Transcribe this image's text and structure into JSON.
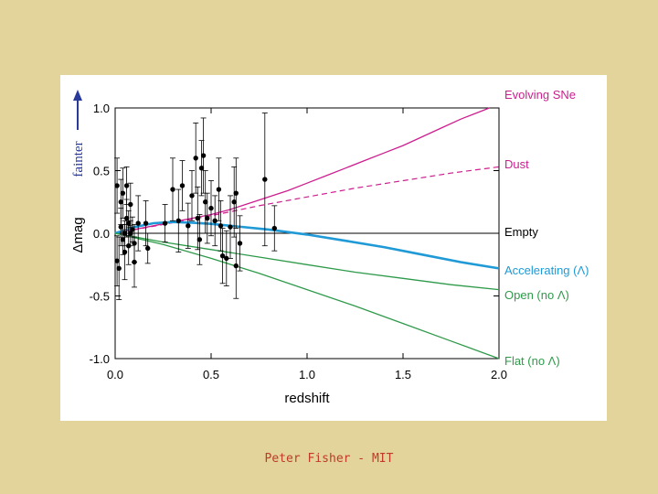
{
  "footer": {
    "text": "Peter Fisher - MIT"
  },
  "chart_data": {
    "type": "scatter",
    "xlabel": "redshift",
    "ylabel": "Δmag",
    "arrow_label": "fainter",
    "xlim": [
      0.0,
      2.0
    ],
    "ylim": [
      -1.0,
      1.0
    ],
    "xticks": [
      "0.0",
      "0.5",
      "1.0",
      "1.5",
      "2.0"
    ],
    "yticks": [
      "1.0",
      "0.5",
      "0.0",
      "-0.5",
      "-1.0"
    ],
    "grid": false,
    "series": [
      {
        "name": "Evolving SNe",
        "color": "#cc1f8f",
        "style": "solid",
        "width": 1.3,
        "x": [
          0,
          0.1,
          0.2,
          0.3,
          0.4,
          0.5,
          0.6,
          0.7,
          0.8,
          0.9,
          1.0,
          1.1,
          1.2,
          1.3,
          1.4,
          1.5,
          1.6,
          1.7,
          1.8,
          1.9,
          1.95
        ],
        "y": [
          0,
          0.03,
          0.06,
          0.09,
          0.12,
          0.15,
          0.19,
          0.24,
          0.29,
          0.34,
          0.4,
          0.46,
          0.52,
          0.58,
          0.64,
          0.7,
          0.77,
          0.84,
          0.91,
          0.97,
          1.0
        ]
      },
      {
        "name": "Dust",
        "color": "#cc1f8f",
        "style": "dashed",
        "width": 1.2,
        "x": [
          0,
          0.25,
          0.5,
          0.75,
          1.0,
          1.25,
          1.5,
          1.75,
          2.0
        ],
        "y": [
          0,
          0.07,
          0.14,
          0.22,
          0.29,
          0.36,
          0.42,
          0.48,
          0.53
        ]
      },
      {
        "name": "Empty",
        "color": "#000000",
        "style": "solid",
        "width": 0.9,
        "x": [
          0,
          2.0
        ],
        "y": [
          0,
          0
        ]
      },
      {
        "name": "Accelerating (Λ)",
        "color": "#1f9ad6",
        "style": "solid",
        "width": 2.6,
        "x": [
          0,
          0.1,
          0.2,
          0.3,
          0.4,
          0.5,
          0.6,
          0.8,
          1.0,
          1.2,
          1.4,
          1.6,
          1.8,
          2.0
        ],
        "y": [
          0,
          0.05,
          0.08,
          0.09,
          0.085,
          0.075,
          0.06,
          0.03,
          -0.01,
          -0.06,
          -0.11,
          -0.17,
          -0.23,
          -0.28
        ]
      },
      {
        "name": "Open (no Λ)",
        "color": "#2e9a4a",
        "style": "solid",
        "width": 1.3,
        "x": [
          0,
          0.25,
          0.5,
          0.75,
          1.0,
          1.25,
          1.5,
          1.75,
          2.0
        ],
        "y": [
          0,
          -0.07,
          -0.13,
          -0.19,
          -0.25,
          -0.31,
          -0.36,
          -0.41,
          -0.45
        ]
      },
      {
        "name": "Flat (no Λ)",
        "color": "#2e9a4a",
        "style": "solid",
        "width": 1.3,
        "x": [
          0,
          0.25,
          0.5,
          0.75,
          1.0,
          1.25,
          1.5,
          1.75,
          2.0
        ],
        "y": [
          0,
          -0.09,
          -0.2,
          -0.32,
          -0.45,
          -0.58,
          -0.72,
          -0.86,
          -1.0
        ]
      }
    ],
    "points": [
      {
        "x": 0.01,
        "y": 0.38,
        "err": 0.22
      },
      {
        "x": 0.01,
        "y": -0.22,
        "err": 0.2
      },
      {
        "x": 0.02,
        "y": -0.28,
        "err": 0.25
      },
      {
        "x": 0.03,
        "y": 0.05,
        "err": 0.15
      },
      {
        "x": 0.03,
        "y": 0.25,
        "err": 0.18
      },
      {
        "x": 0.04,
        "y": -0.05,
        "err": 0.12
      },
      {
        "x": 0.04,
        "y": 0.32,
        "err": 0.2
      },
      {
        "x": 0.05,
        "y": 0.0,
        "err": 0.1
      },
      {
        "x": 0.05,
        "y": -0.15,
        "err": 0.22
      },
      {
        "x": 0.06,
        "y": 0.38,
        "err": 0.15
      },
      {
        "x": 0.06,
        "y": 0.12,
        "err": 0.15
      },
      {
        "x": 0.07,
        "y": 0.08,
        "err": 0.1
      },
      {
        "x": 0.07,
        "y": -0.1,
        "err": 0.15
      },
      {
        "x": 0.08,
        "y": 0.23,
        "err": 0.17
      },
      {
        "x": 0.08,
        "y": 0.0,
        "err": 0.1
      },
      {
        "x": 0.09,
        "y": 0.03,
        "err": 0.1
      },
      {
        "x": 0.1,
        "y": -0.08,
        "err": 0.15
      },
      {
        "x": 0.1,
        "y": -0.23,
        "err": 0.2
      },
      {
        "x": 0.12,
        "y": 0.08,
        "err": 0.22
      },
      {
        "x": 0.16,
        "y": 0.08,
        "err": 0.18
      },
      {
        "x": 0.17,
        "y": -0.12,
        "err": 0.12
      },
      {
        "x": 0.26,
        "y": 0.08,
        "err": 0.15
      },
      {
        "x": 0.3,
        "y": 0.35,
        "err": 0.25
      },
      {
        "x": 0.33,
        "y": 0.1,
        "err": 0.25
      },
      {
        "x": 0.35,
        "y": 0.38,
        "err": 0.2
      },
      {
        "x": 0.38,
        "y": 0.06,
        "err": 0.18
      },
      {
        "x": 0.4,
        "y": 0.3,
        "err": 0.2
      },
      {
        "x": 0.42,
        "y": 0.6,
        "err": 0.28
      },
      {
        "x": 0.43,
        "y": 0.12,
        "err": 0.25
      },
      {
        "x": 0.44,
        "y": -0.05,
        "err": 0.2
      },
      {
        "x": 0.45,
        "y": 0.52,
        "err": 0.22
      },
      {
        "x": 0.46,
        "y": 0.62,
        "err": 0.3
      },
      {
        "x": 0.47,
        "y": 0.25,
        "err": 0.25
      },
      {
        "x": 0.48,
        "y": 0.12,
        "err": 0.2
      },
      {
        "x": 0.5,
        "y": 0.2,
        "err": 0.22
      },
      {
        "x": 0.52,
        "y": 0.1,
        "err": 0.2
      },
      {
        "x": 0.54,
        "y": 0.35,
        "err": 0.25
      },
      {
        "x": 0.55,
        "y": 0.06,
        "err": 0.2
      },
      {
        "x": 0.56,
        "y": -0.18,
        "err": 0.22
      },
      {
        "x": 0.58,
        "y": -0.2,
        "err": 0.22
      },
      {
        "x": 0.6,
        "y": 0.05,
        "err": 0.25
      },
      {
        "x": 0.62,
        "y": 0.25,
        "err": 0.28
      },
      {
        "x": 0.63,
        "y": 0.32,
        "err": 0.28
      },
      {
        "x": 0.63,
        "y": -0.26,
        "err": 0.26
      },
      {
        "x": 0.65,
        "y": -0.08,
        "err": 0.22
      },
      {
        "x": 0.78,
        "y": 0.43,
        "err": 0.53
      },
      {
        "x": 0.83,
        "y": 0.04,
        "err": 0.18
      }
    ]
  }
}
